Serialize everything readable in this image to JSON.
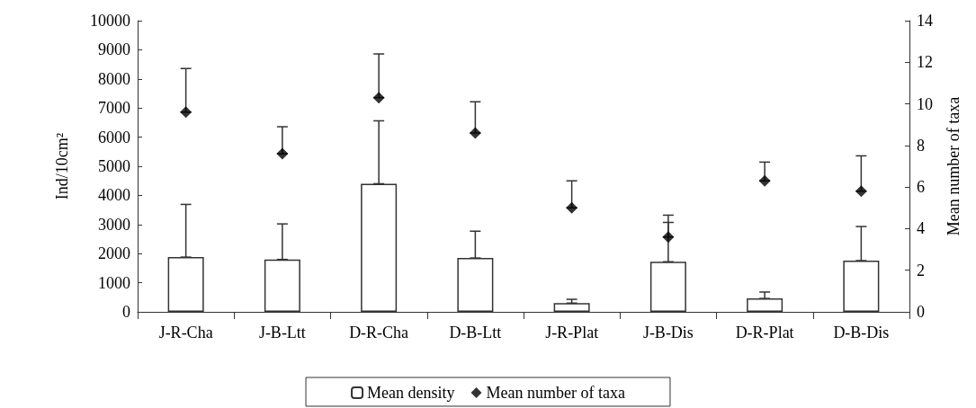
{
  "chart_data": {
    "type": "bar",
    "ylabel": "Ind/10cm²",
    "y2label": "Mean number of taxa",
    "categories": [
      "J-R-Cha",
      "J-B-Ltt",
      "D-R-Cha",
      "D-B-Ltt",
      "J-R-Plat",
      "J-B-Dis",
      "D-R-Plat",
      "D-B-Dis"
    ],
    "series": [
      {
        "name": "Mean density",
        "color": "#ffffff",
        "values": [
          1880,
          1800,
          4400,
          1850,
          300,
          1720,
          460,
          1760
        ],
        "errors": [
          [
            1880,
            3690
          ],
          [
            1800,
            3020
          ],
          [
            4400,
            6560
          ],
          [
            1850,
            2770
          ],
          [
            300,
            430
          ],
          [
            1720,
            3320
          ],
          [
            460,
            680
          ],
          [
            1760,
            2930
          ]
        ]
      },
      {
        "name": "Mean number of taxa",
        "type": "scatter",
        "axis": "y2",
        "marker": "diamond",
        "color": "#000000",
        "values": [
          9.6,
          7.6,
          10.3,
          8.6,
          5.0,
          3.6,
          6.3,
          5.8
        ],
        "errors": [
          [
            9.6,
            11.7
          ],
          [
            7.6,
            8.9
          ],
          [
            10.3,
            12.4
          ],
          [
            8.6,
            10.1
          ],
          [
            5.0,
            6.3
          ],
          [
            3.6,
            4.3
          ],
          [
            6.3,
            7.2
          ],
          [
            5.8,
            7.5
          ]
        ]
      }
    ],
    "ylim": [
      0,
      10000
    ],
    "yticks": [
      0,
      1000,
      2000,
      3000,
      4000,
      5000,
      6000,
      7000,
      8000,
      9000,
      10000
    ],
    "y2lim": [
      0,
      14
    ],
    "y2ticks": [
      0,
      2,
      4,
      6,
      8,
      10,
      12,
      14
    ],
    "grid": false,
    "legend": "bottom"
  }
}
